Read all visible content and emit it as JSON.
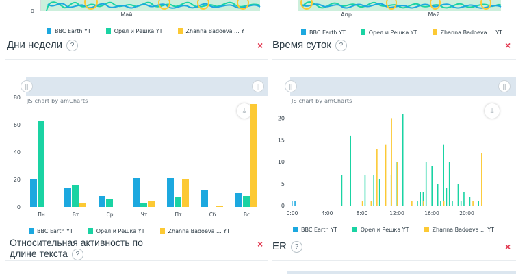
{
  "colors": {
    "bbc": "#1ca8df",
    "orel": "#1ad3a3",
    "zhanna": "#fcc934",
    "close": "#e2374f",
    "scrollbar": "#dce6ef"
  },
  "legend": [
    "BBC Earth YT",
    "Орел и Решка YT",
    "Zhanna Badoeva ... YT"
  ],
  "left_top": {
    "y_zero": "0",
    "x_tick": "Май"
  },
  "right_top": {
    "x_ticks": [
      "Апр",
      "Май"
    ]
  },
  "weekday_panel": {
    "title": "Дни недели",
    "help": "?",
    "close": "×",
    "credit": "JS chart by amCharts",
    "download_icon": "download-icon"
  },
  "hour_panel": {
    "title": "Время суток",
    "help": "?",
    "close": "×",
    "credit": "JS chart by amCharts",
    "download_icon": "download-icon"
  },
  "bottom_left": {
    "title_line1": "Относительная активность по",
    "title_line2": "длине текста",
    "help": "?",
    "close": "×"
  },
  "bottom_right": {
    "title": "ER",
    "help": "?",
    "close": "×"
  },
  "chart_data": [
    {
      "type": "bar",
      "categories": [
        "Пн",
        "Вт",
        "Ср",
        "Чт",
        "Пт",
        "Сб",
        "Вс"
      ],
      "series": [
        {
          "name": "BBC Earth YT",
          "values": [
            20,
            14,
            8,
            21,
            21,
            12,
            10
          ]
        },
        {
          "name": "Орел и Решка YT",
          "values": [
            63,
            16,
            6,
            3,
            7,
            0,
            8
          ]
        },
        {
          "name": "Zhanna Badoeva ... YT",
          "values": [
            0,
            3,
            0,
            4,
            20,
            1,
            75
          ]
        }
      ],
      "ylim": [
        0,
        80
      ],
      "yticks": [
        0,
        20,
        40,
        60,
        80
      ],
      "grid": false,
      "legend_position": "bottom"
    },
    {
      "type": "bar",
      "x": [
        "0:00",
        "0:20",
        "0:40",
        "1:00",
        "1:20",
        "1:40",
        "2:00",
        "2:20",
        "2:40",
        "3:00",
        "3:20",
        "3:40",
        "4:00",
        "4:20",
        "4:40",
        "5:00",
        "5:20",
        "5:40",
        "6:00",
        "6:20",
        "6:40",
        "7:00",
        "7:20",
        "7:40",
        "8:00",
        "8:20",
        "8:40",
        "9:00",
        "9:20",
        "9:40",
        "10:00",
        "10:20",
        "10:40",
        "11:00",
        "11:20",
        "11:40",
        "12:00",
        "12:20",
        "12:40",
        "13:00",
        "13:20",
        "13:40",
        "14:00",
        "14:20",
        "14:40",
        "15:00",
        "15:20",
        "15:40",
        "16:00",
        "16:20",
        "16:40",
        "17:00",
        "17:20",
        "17:40",
        "18:00",
        "18:20",
        "18:40",
        "19:00",
        "19:20",
        "19:40",
        "20:00",
        "20:20",
        "20:40",
        "21:00",
        "21:20",
        "21:40",
        "22:00",
        "22:20",
        "22:40",
        "23:00",
        "23:20",
        "23:40"
      ],
      "x_tick_labels": [
        "0:00",
        "4:00",
        "8:00",
        "12:00",
        "16:00",
        "20:00"
      ],
      "series": [
        {
          "name": "BBC Earth YT",
          "values": [
            1,
            1,
            0,
            0,
            0,
            0,
            0,
            0,
            0,
            0,
            0,
            0,
            0,
            0,
            0,
            0,
            0,
            0,
            0,
            0,
            0,
            0,
            0,
            0,
            0,
            0,
            0,
            0,
            0,
            0,
            0,
            0,
            0,
            0,
            0,
            0,
            0,
            0,
            0,
            0,
            0,
            0,
            0,
            0,
            0,
            0,
            0,
            0,
            0,
            0,
            0,
            0,
            0,
            0,
            0,
            0,
            0,
            0,
            0,
            0,
            0,
            0,
            0,
            0,
            0,
            0,
            0,
            0,
            0,
            0,
            0,
            0
          ]
        },
        {
          "name": "Орел и Решка YT",
          "values": [
            0,
            0,
            0,
            0,
            0,
            0,
            0,
            0,
            0,
            0,
            0,
            0,
            0,
            0,
            0,
            0,
            0,
            7,
            0,
            0,
            16,
            0,
            0,
            0,
            0,
            7,
            0,
            0,
            7,
            0,
            6,
            0,
            11,
            0,
            7,
            0,
            10,
            0,
            21,
            0,
            0,
            0,
            0,
            1,
            3,
            3,
            10,
            0,
            9,
            0,
            5,
            1,
            14,
            4,
            10,
            1,
            0,
            5,
            1,
            3,
            0,
            2,
            0,
            0,
            1,
            0,
            0,
            0,
            0,
            0,
            0,
            0
          ]
        },
        {
          "name": "Zhanna Badoeva ... YT",
          "values": [
            0,
            0,
            0,
            0,
            0,
            0,
            0,
            0,
            0,
            0,
            0,
            0,
            0,
            0,
            0,
            0,
            0,
            0,
            0,
            0,
            0,
            0,
            0,
            0,
            1,
            0,
            0,
            1,
            0,
            13,
            0,
            0,
            14,
            0,
            20,
            0,
            10,
            0,
            0,
            0,
            0,
            1,
            0,
            0,
            0,
            1,
            0,
            0,
            0,
            0,
            0,
            0,
            1,
            0,
            0,
            0,
            0,
            0,
            0,
            0,
            0,
            0,
            1,
            0,
            0,
            12,
            0,
            0,
            0,
            0,
            0,
            0
          ]
        }
      ],
      "ylim": [
        0,
        21
      ],
      "yticks": [
        0,
        5,
        10,
        15,
        20
      ],
      "grid": false,
      "legend_position": "bottom"
    }
  ]
}
